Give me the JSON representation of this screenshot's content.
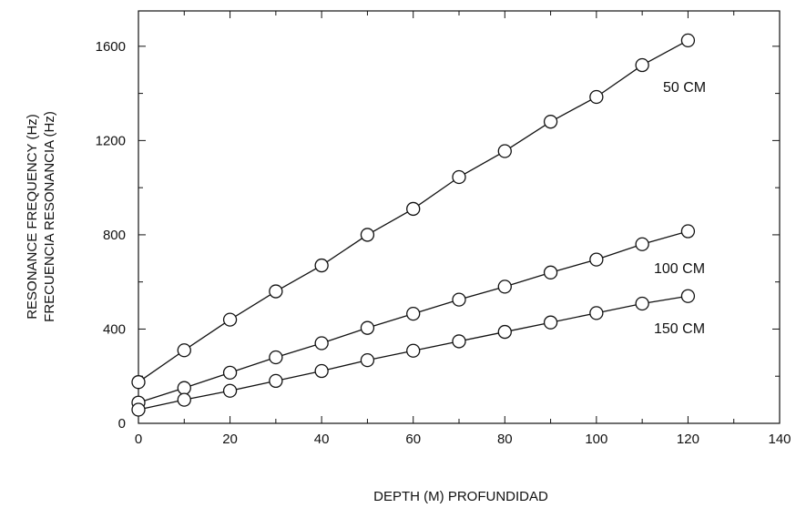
{
  "chart_data": {
    "type": "line",
    "xlabel": "DEPTH (M) PROFUNDIDAD",
    "ylabel": [
      "RESONANCE FREQUENCY (Hz)",
      "FRECUENCIA RESONANCIA (Hz)"
    ],
    "xlim": [
      0,
      140
    ],
    "ylim": [
      0,
      1750
    ],
    "xticks": [
      0,
      20,
      40,
      60,
      80,
      100,
      120,
      140
    ],
    "yticks": [
      0,
      400,
      800,
      1200,
      1600
    ],
    "marker": "open-circle",
    "grid": false,
    "x": [
      0,
      10,
      20,
      30,
      40,
      50,
      60,
      70,
      80,
      90,
      100,
      110,
      120
    ],
    "series": [
      {
        "name": "50 CM",
        "values": [
          175,
          310,
          440,
          560,
          670,
          800,
          910,
          1045,
          1155,
          1280,
          1385,
          1520,
          1625
        ]
      },
      {
        "name": "100 CM",
        "values": [
          88,
          150,
          215,
          280,
          340,
          405,
          465,
          525,
          580,
          640,
          695,
          760,
          815
        ]
      },
      {
        "name": "150 CM",
        "values": [
          58,
          100,
          138,
          180,
          222,
          268,
          308,
          348,
          388,
          428,
          468,
          508,
          540
        ]
      }
    ]
  }
}
